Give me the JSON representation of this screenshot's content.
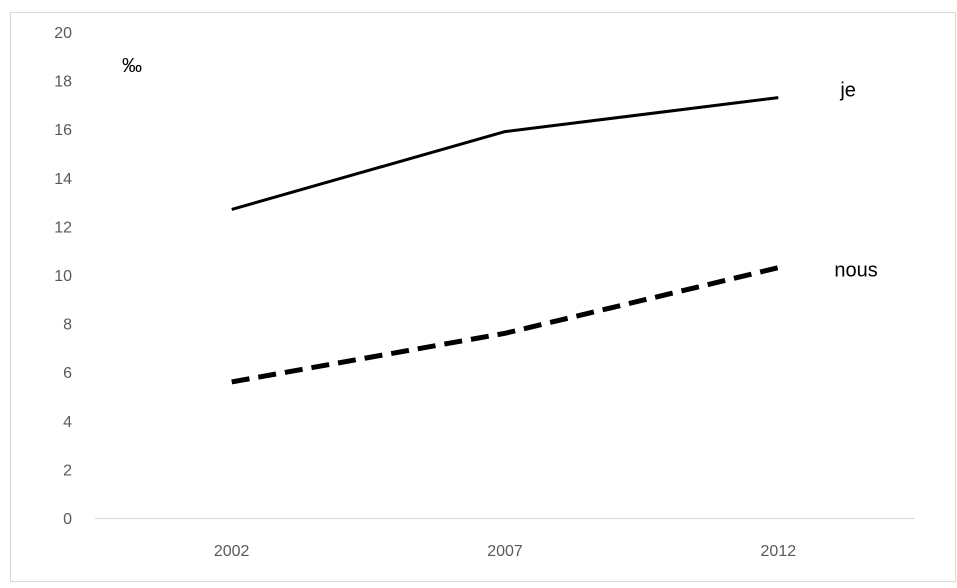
{
  "chart_data": {
    "type": "line",
    "title": "",
    "xlabel": "",
    "ylabel": "‰",
    "categories": [
      "2002",
      "2007",
      "2012"
    ],
    "ylim": [
      0,
      20
    ],
    "yticks": [
      "0",
      "2",
      "4",
      "6",
      "8",
      "10",
      "12",
      "14",
      "16",
      "18",
      "20"
    ],
    "grid": false,
    "legend": "none",
    "series": [
      {
        "name": "je",
        "values": [
          12.7,
          15.9,
          17.3
        ],
        "color": "#000000",
        "dash": "solid"
      },
      {
        "name": "nous",
        "values": [
          5.6,
          7.6,
          10.3
        ],
        "color": "#000000",
        "dash": "dashed"
      }
    ]
  }
}
